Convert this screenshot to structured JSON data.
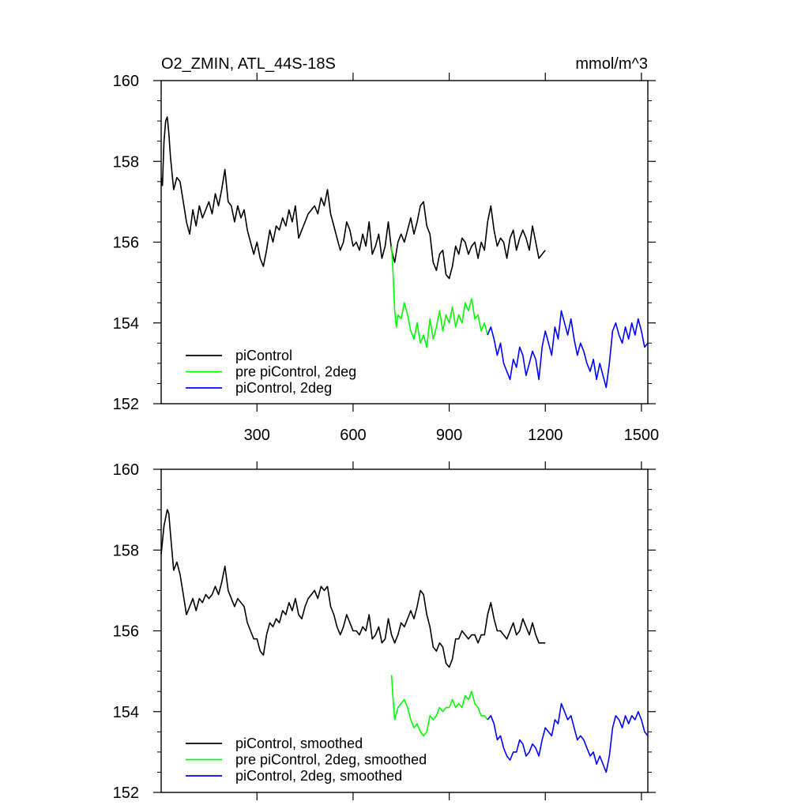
{
  "chart_data": [
    {
      "type": "line",
      "title": "O2_ZMIN, ATL_44S-18S",
      "units": "mmol/m^3",
      "xlabel": "",
      "ylabel": "",
      "xlim": [
        1,
        1520
      ],
      "ylim": [
        152,
        160
      ],
      "xticks": [
        300,
        600,
        900,
        1200,
        1500
      ],
      "xtick_labels": [
        "300",
        "600",
        "900",
        "1200",
        "1500"
      ],
      "yticks": [
        152,
        154,
        156,
        158,
        160
      ],
      "ytick_labels": [
        "152",
        "154",
        "156",
        "158",
        "160"
      ],
      "grid": false,
      "legend_position": "bottom-left",
      "series": [
        {
          "name": "piControl",
          "color": "#000000",
          "x": [
            1,
            5,
            10,
            15,
            20,
            25,
            30,
            40,
            50,
            60,
            70,
            80,
            90,
            100,
            110,
            120,
            130,
            140,
            150,
            160,
            170,
            180,
            190,
            200,
            210,
            220,
            230,
            240,
            250,
            260,
            270,
            280,
            290,
            300,
            310,
            320,
            330,
            340,
            350,
            360,
            370,
            380,
            390,
            400,
            410,
            420,
            430,
            440,
            450,
            460,
            470,
            480,
            490,
            500,
            510,
            520,
            530,
            540,
            550,
            560,
            570,
            580,
            590,
            600,
            610,
            620,
            630,
            640,
            650,
            660,
            670,
            680,
            690,
            700,
            710,
            720,
            730,
            740,
            750,
            760,
            770,
            780,
            790,
            800,
            810,
            820,
            830,
            840,
            850,
            860,
            870,
            880,
            890,
            900,
            910,
            920,
            930,
            940,
            950,
            960,
            970,
            980,
            990,
            1000,
            1010,
            1020,
            1030,
            1040,
            1050,
            1060,
            1070,
            1080,
            1090,
            1100,
            1110,
            1120,
            1130,
            1140,
            1150,
            1160,
            1170,
            1180,
            1190,
            1200
          ],
          "y": [
            157.6,
            157.4,
            158.5,
            159.0,
            159.1,
            158.7,
            158.1,
            157.3,
            157.6,
            157.5,
            157.0,
            156.5,
            156.2,
            156.8,
            156.4,
            156.9,
            156.6,
            156.8,
            157.0,
            156.7,
            157.2,
            156.9,
            157.3,
            157.8,
            157.0,
            156.9,
            156.5,
            156.9,
            156.6,
            156.8,
            156.3,
            156.0,
            155.7,
            156.0,
            155.6,
            155.4,
            155.8,
            156.3,
            156.0,
            156.4,
            156.3,
            156.6,
            156.4,
            156.8,
            156.5,
            156.9,
            156.1,
            156.3,
            156.5,
            156.7,
            156.8,
            156.9,
            156.7,
            157.1,
            156.9,
            157.3,
            156.7,
            156.4,
            156.1,
            155.8,
            156.0,
            156.5,
            156.3,
            155.9,
            156.0,
            155.8,
            156.2,
            155.9,
            156.5,
            155.7,
            155.9,
            156.2,
            155.6,
            155.9,
            156.5,
            155.8,
            155.5,
            156.0,
            156.2,
            156.0,
            156.3,
            156.6,
            156.2,
            156.5,
            156.9,
            157.0,
            156.4,
            156.2,
            155.5,
            155.3,
            155.7,
            155.8,
            155.2,
            155.1,
            155.4,
            155.9,
            155.7,
            156.1,
            156.0,
            155.7,
            155.9,
            156.0,
            155.6,
            156.0,
            155.8,
            156.5,
            156.9,
            156.3,
            155.9,
            156.1,
            156.0,
            155.6,
            156.1,
            156.3,
            155.8,
            156.1,
            156.3,
            156.1,
            155.8,
            156.4,
            156.0,
            155.6,
            155.7,
            155.8
          ]
        },
        {
          "name": "pre piControl, 2deg",
          "color": "#00ff00",
          "x": [
            720,
            725,
            730,
            735,
            740,
            750,
            760,
            770,
            780,
            790,
            800,
            810,
            820,
            830,
            840,
            850,
            860,
            870,
            880,
            890,
            900,
            910,
            920,
            930,
            940,
            950,
            960,
            970,
            980,
            990,
            1000,
            1010,
            1020
          ],
          "y": [
            155.9,
            155.2,
            154.3,
            153.9,
            154.2,
            154.1,
            154.5,
            154.2,
            153.8,
            153.6,
            154.0,
            153.5,
            153.7,
            153.4,
            154.1,
            153.6,
            153.9,
            154.3,
            153.8,
            154.2,
            154.0,
            154.4,
            153.9,
            154.2,
            154.0,
            154.5,
            154.3,
            154.6,
            154.1,
            154.2,
            153.8,
            154.0,
            153.7
          ]
        },
        {
          "name": "piControl, 2deg",
          "color": "#0000ff",
          "x": [
            1020,
            1030,
            1040,
            1050,
            1060,
            1070,
            1080,
            1090,
            1100,
            1110,
            1120,
            1130,
            1140,
            1150,
            1160,
            1170,
            1180,
            1190,
            1200,
            1210,
            1220,
            1230,
            1240,
            1250,
            1260,
            1270,
            1280,
            1290,
            1300,
            1310,
            1320,
            1330,
            1340,
            1350,
            1360,
            1370,
            1380,
            1390,
            1400,
            1410,
            1420,
            1430,
            1440,
            1450,
            1460,
            1470,
            1480,
            1490,
            1500,
            1510,
            1520
          ],
          "y": [
            153.7,
            153.9,
            153.6,
            153.2,
            153.5,
            153.0,
            152.8,
            152.6,
            153.1,
            152.9,
            153.4,
            153.2,
            152.7,
            153.0,
            153.3,
            153.1,
            152.6,
            153.4,
            153.8,
            153.5,
            153.2,
            153.9,
            153.6,
            154.3,
            154.0,
            153.7,
            154.1,
            153.6,
            153.2,
            153.5,
            153.3,
            153.0,
            152.8,
            153.1,
            152.6,
            153.0,
            152.7,
            152.4,
            153.0,
            153.8,
            154.0,
            153.7,
            153.5,
            153.9,
            153.6,
            154.0,
            153.7,
            154.1,
            153.8,
            153.4,
            153.5
          ]
        }
      ]
    },
    {
      "type": "line",
      "title": "",
      "xlabel": "",
      "ylabel": "",
      "xlim": [
        1,
        1520
      ],
      "ylim": [
        152,
        160
      ],
      "xticks": [
        300,
        600,
        900,
        1200,
        1500
      ],
      "yticks": [
        152,
        154,
        156,
        158,
        160
      ],
      "ytick_labels": [
        "152",
        "154",
        "156",
        "158",
        "160"
      ],
      "grid": false,
      "legend_position": "bottom-left",
      "series": [
        {
          "name": "piControl, smoothed",
          "color": "#000000",
          "x": [
            1,
            10,
            20,
            25,
            30,
            40,
            50,
            60,
            70,
            80,
            90,
            100,
            110,
            120,
            130,
            140,
            150,
            160,
            170,
            180,
            190,
            200,
            210,
            220,
            230,
            240,
            250,
            260,
            270,
            280,
            290,
            300,
            310,
            320,
            330,
            340,
            350,
            360,
            370,
            380,
            390,
            400,
            410,
            420,
            430,
            440,
            450,
            460,
            470,
            480,
            490,
            500,
            510,
            520,
            530,
            540,
            550,
            560,
            570,
            580,
            590,
            600,
            610,
            620,
            630,
            640,
            650,
            660,
            670,
            680,
            690,
            700,
            710,
            720,
            730,
            740,
            750,
            760,
            770,
            780,
            790,
            800,
            810,
            820,
            830,
            840,
            850,
            860,
            870,
            880,
            890,
            900,
            910,
            920,
            930,
            940,
            950,
            960,
            970,
            980,
            990,
            1000,
            1010,
            1020,
            1030,
            1040,
            1050,
            1060,
            1070,
            1080,
            1090,
            1100,
            1110,
            1120,
            1130,
            1140,
            1150,
            1160,
            1170,
            1180,
            1190,
            1200
          ],
          "y": [
            157.9,
            158.6,
            159.0,
            158.9,
            158.4,
            157.5,
            157.7,
            157.4,
            156.9,
            156.4,
            156.6,
            156.8,
            156.5,
            156.8,
            156.7,
            156.9,
            156.8,
            156.9,
            157.1,
            156.9,
            157.2,
            157.6,
            157.0,
            156.8,
            156.6,
            156.8,
            156.7,
            156.6,
            156.2,
            156.0,
            155.8,
            155.8,
            155.5,
            155.4,
            155.9,
            156.2,
            156.1,
            156.3,
            156.2,
            156.5,
            156.4,
            156.7,
            156.5,
            156.8,
            156.4,
            156.3,
            156.6,
            156.8,
            156.9,
            157.0,
            156.8,
            157.1,
            157.0,
            157.1,
            156.6,
            156.4,
            156.1,
            155.9,
            156.1,
            156.4,
            156.2,
            156.0,
            156.0,
            155.9,
            156.1,
            156.0,
            156.4,
            155.8,
            155.9,
            156.1,
            155.7,
            155.8,
            156.3,
            155.9,
            155.7,
            155.9,
            156.2,
            156.1,
            156.3,
            156.5,
            156.3,
            156.6,
            157.0,
            156.9,
            156.4,
            156.1,
            155.6,
            155.5,
            155.7,
            155.6,
            155.2,
            155.1,
            155.3,
            155.8,
            155.8,
            156.0,
            155.9,
            155.8,
            155.9,
            155.9,
            155.7,
            155.9,
            155.9,
            156.4,
            156.7,
            156.3,
            156.0,
            156.0,
            155.9,
            155.8,
            156.0,
            156.2,
            155.9,
            156.0,
            156.3,
            156.1,
            155.9,
            156.2,
            155.9,
            155.7,
            155.7,
            155.7
          ]
        },
        {
          "name": "pre piControl, 2deg, smoothed",
          "color": "#00ff00",
          "x": [
            720,
            725,
            730,
            740,
            750,
            760,
            770,
            780,
            790,
            800,
            810,
            820,
            830,
            840,
            850,
            860,
            870,
            880,
            890,
            900,
            910,
            920,
            930,
            940,
            950,
            960,
            970,
            980,
            990,
            1000,
            1010,
            1020
          ],
          "y": [
            154.9,
            154.3,
            153.8,
            154.1,
            154.2,
            154.3,
            154.1,
            153.8,
            153.6,
            153.7,
            153.5,
            153.4,
            153.5,
            153.9,
            153.8,
            153.9,
            154.1,
            154.0,
            154.1,
            154.1,
            154.3,
            154.1,
            154.2,
            154.1,
            154.4,
            154.3,
            154.5,
            154.2,
            154.1,
            153.9,
            153.9,
            153.8
          ]
        },
        {
          "name": "piControl, 2deg, smoothed",
          "color": "#0000ff",
          "x": [
            1020,
            1030,
            1040,
            1050,
            1060,
            1070,
            1080,
            1090,
            1100,
            1110,
            1120,
            1130,
            1140,
            1150,
            1160,
            1170,
            1180,
            1190,
            1200,
            1210,
            1220,
            1230,
            1240,
            1250,
            1260,
            1270,
            1280,
            1290,
            1300,
            1310,
            1320,
            1330,
            1340,
            1350,
            1360,
            1370,
            1380,
            1390,
            1400,
            1410,
            1420,
            1430,
            1440,
            1450,
            1460,
            1470,
            1480,
            1490,
            1500,
            1510,
            1520
          ],
          "y": [
            153.8,
            153.9,
            153.7,
            153.3,
            153.4,
            153.1,
            152.9,
            152.8,
            153.0,
            153.0,
            153.3,
            153.2,
            152.9,
            153.0,
            153.2,
            153.1,
            152.9,
            153.3,
            153.6,
            153.5,
            153.4,
            153.8,
            153.7,
            154.2,
            154.0,
            153.8,
            153.9,
            153.6,
            153.3,
            153.4,
            153.3,
            153.1,
            152.9,
            153.0,
            152.7,
            152.9,
            152.7,
            152.5,
            152.9,
            153.6,
            153.9,
            153.8,
            153.6,
            153.9,
            153.7,
            153.9,
            153.8,
            154.0,
            153.8,
            153.5,
            153.4
          ]
        }
      ]
    }
  ]
}
